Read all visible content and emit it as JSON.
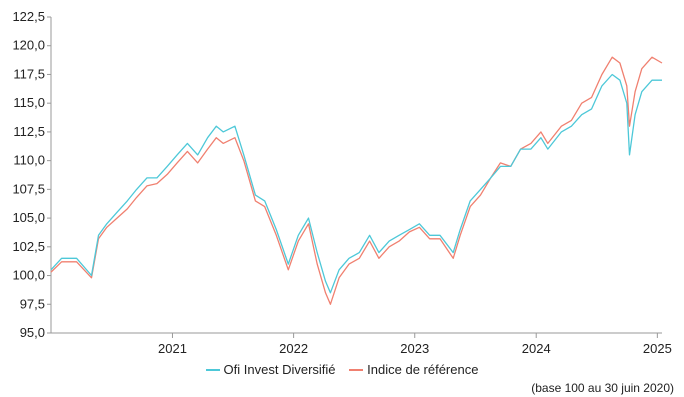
{
  "chart_data": {
    "type": "line",
    "ylim": [
      95,
      122.5
    ],
    "y_ticks": [
      "95,0",
      "97,5",
      "100,0",
      "102,5",
      "105,0",
      "107,5",
      "110,0",
      "112,5",
      "115,0",
      "117,5",
      "120,0",
      "122,5"
    ],
    "y_tick_values": [
      95,
      97.5,
      100,
      102.5,
      105,
      107.5,
      110,
      112.5,
      115,
      117.5,
      120,
      122.5
    ],
    "x_range": [
      "2020-06-30",
      "2025-07-15"
    ],
    "x_ticks": [
      {
        "label": "2021",
        "date": "2021-07-01"
      },
      {
        "label": "2022",
        "date": "2022-07-01"
      },
      {
        "label": "2023",
        "date": "2023-07-01"
      },
      {
        "label": "2024",
        "date": "2024-07-01"
      },
      {
        "label": "2025",
        "date": "2025-07-01"
      }
    ],
    "grid": false,
    "legend_position": "bottom",
    "series": [
      {
        "name": "Ofi Invest Diversifié",
        "color": "#4dc8d8",
        "points": [
          [
            "2020-06-30",
            100.5
          ],
          [
            "2020-08-01",
            101.5
          ],
          [
            "2020-09-15",
            101.5
          ],
          [
            "2020-10-30",
            100.0
          ],
          [
            "2020-11-20",
            103.5
          ],
          [
            "2020-12-15",
            104.5
          ],
          [
            "2021-01-15",
            105.5
          ],
          [
            "2021-02-15",
            106.5
          ],
          [
            "2021-03-15",
            107.5
          ],
          [
            "2021-04-15",
            108.5
          ],
          [
            "2021-05-15",
            108.5
          ],
          [
            "2021-06-15",
            109.5
          ],
          [
            "2021-07-15",
            110.5
          ],
          [
            "2021-08-15",
            111.5
          ],
          [
            "2021-09-15",
            110.5
          ],
          [
            "2021-10-15",
            112.0
          ],
          [
            "2021-11-10",
            113.0
          ],
          [
            "2021-12-01",
            112.5
          ],
          [
            "2022-01-05",
            113.0
          ],
          [
            "2022-02-01",
            110.5
          ],
          [
            "2022-03-08",
            107.0
          ],
          [
            "2022-04-05",
            106.5
          ],
          [
            "2022-05-10",
            104.0
          ],
          [
            "2022-06-15",
            101.0
          ],
          [
            "2022-07-15",
            103.5
          ],
          [
            "2022-08-15",
            105.0
          ],
          [
            "2022-09-10",
            102.0
          ],
          [
            "2022-10-05",
            99.5
          ],
          [
            "2022-10-20",
            98.5
          ],
          [
            "2022-11-15",
            100.5
          ],
          [
            "2022-12-15",
            101.5
          ],
          [
            "2023-01-15",
            102.0
          ],
          [
            "2023-02-15",
            103.5
          ],
          [
            "2023-03-15",
            102.0
          ],
          [
            "2023-04-15",
            103.0
          ],
          [
            "2023-05-15",
            103.5
          ],
          [
            "2023-06-15",
            104.0
          ],
          [
            "2023-07-15",
            104.5
          ],
          [
            "2023-08-15",
            103.5
          ],
          [
            "2023-09-15",
            103.5
          ],
          [
            "2023-10-25",
            102.0
          ],
          [
            "2023-11-15",
            104.0
          ],
          [
            "2023-12-15",
            106.5
          ],
          [
            "2024-01-15",
            107.5
          ],
          [
            "2024-02-15",
            108.5
          ],
          [
            "2024-03-15",
            109.5
          ],
          [
            "2024-04-15",
            109.5
          ],
          [
            "2024-05-15",
            111.0
          ],
          [
            "2024-06-15",
            111.0
          ],
          [
            "2024-07-15",
            112.0
          ],
          [
            "2024-08-05",
            111.0
          ],
          [
            "2024-09-15",
            112.5
          ],
          [
            "2024-10-15",
            113.0
          ],
          [
            "2024-11-15",
            114.0
          ],
          [
            "2024-12-15",
            114.5
          ],
          [
            "2025-01-15",
            116.5
          ],
          [
            "2025-02-15",
            117.5
          ],
          [
            "2025-03-10",
            117.0
          ],
          [
            "2025-03-31",
            115.0
          ],
          [
            "2025-04-08",
            110.5
          ],
          [
            "2025-04-25",
            114.0
          ],
          [
            "2025-05-15",
            116.0
          ],
          [
            "2025-06-15",
            117.0
          ],
          [
            "2025-07-15",
            117.0
          ]
        ]
      },
      {
        "name": "Indice de référence",
        "color": "#f08070",
        "points": [
          [
            "2020-06-30",
            100.3
          ],
          [
            "2020-08-01",
            101.2
          ],
          [
            "2020-09-15",
            101.2
          ],
          [
            "2020-10-30",
            99.8
          ],
          [
            "2020-11-20",
            103.2
          ],
          [
            "2020-12-15",
            104.2
          ],
          [
            "2021-01-15",
            105.0
          ],
          [
            "2021-02-15",
            105.8
          ],
          [
            "2021-03-15",
            106.8
          ],
          [
            "2021-04-15",
            107.8
          ],
          [
            "2021-05-15",
            108.0
          ],
          [
            "2021-06-15",
            108.8
          ],
          [
            "2021-07-15",
            109.8
          ],
          [
            "2021-08-15",
            110.8
          ],
          [
            "2021-09-15",
            109.8
          ],
          [
            "2021-10-15",
            111.0
          ],
          [
            "2021-11-10",
            112.0
          ],
          [
            "2021-12-01",
            111.5
          ],
          [
            "2022-01-05",
            112.0
          ],
          [
            "2022-02-01",
            110.0
          ],
          [
            "2022-03-08",
            106.5
          ],
          [
            "2022-04-05",
            106.0
          ],
          [
            "2022-05-10",
            103.5
          ],
          [
            "2022-06-15",
            100.5
          ],
          [
            "2022-07-15",
            103.0
          ],
          [
            "2022-08-15",
            104.5
          ],
          [
            "2022-09-10",
            101.0
          ],
          [
            "2022-10-05",
            98.5
          ],
          [
            "2022-10-20",
            97.5
          ],
          [
            "2022-11-15",
            99.8
          ],
          [
            "2022-12-15",
            101.0
          ],
          [
            "2023-01-15",
            101.5
          ],
          [
            "2023-02-15",
            103.0
          ],
          [
            "2023-03-15",
            101.5
          ],
          [
            "2023-04-15",
            102.5
          ],
          [
            "2023-05-15",
            103.0
          ],
          [
            "2023-06-15",
            103.8
          ],
          [
            "2023-07-15",
            104.2
          ],
          [
            "2023-08-15",
            103.2
          ],
          [
            "2023-09-15",
            103.2
          ],
          [
            "2023-10-25",
            101.5
          ],
          [
            "2023-11-15",
            103.5
          ],
          [
            "2023-12-15",
            106.0
          ],
          [
            "2024-01-15",
            107.0
          ],
          [
            "2024-02-15",
            108.5
          ],
          [
            "2024-03-15",
            109.8
          ],
          [
            "2024-04-15",
            109.5
          ],
          [
            "2024-05-15",
            111.0
          ],
          [
            "2024-06-15",
            111.5
          ],
          [
            "2024-07-15",
            112.5
          ],
          [
            "2024-08-05",
            111.5
          ],
          [
            "2024-09-15",
            113.0
          ],
          [
            "2024-10-15",
            113.5
          ],
          [
            "2024-11-15",
            115.0
          ],
          [
            "2024-12-15",
            115.5
          ],
          [
            "2025-01-15",
            117.5
          ],
          [
            "2025-02-15",
            119.0
          ],
          [
            "2025-03-10",
            118.5
          ],
          [
            "2025-03-31",
            116.5
          ],
          [
            "2025-04-08",
            113.0
          ],
          [
            "2025-04-25",
            116.0
          ],
          [
            "2025-05-15",
            118.0
          ],
          [
            "2025-06-15",
            119.0
          ],
          [
            "2025-07-15",
            118.5
          ]
        ]
      }
    ]
  },
  "footnote": "(base 100 au 30 juin 2020)"
}
